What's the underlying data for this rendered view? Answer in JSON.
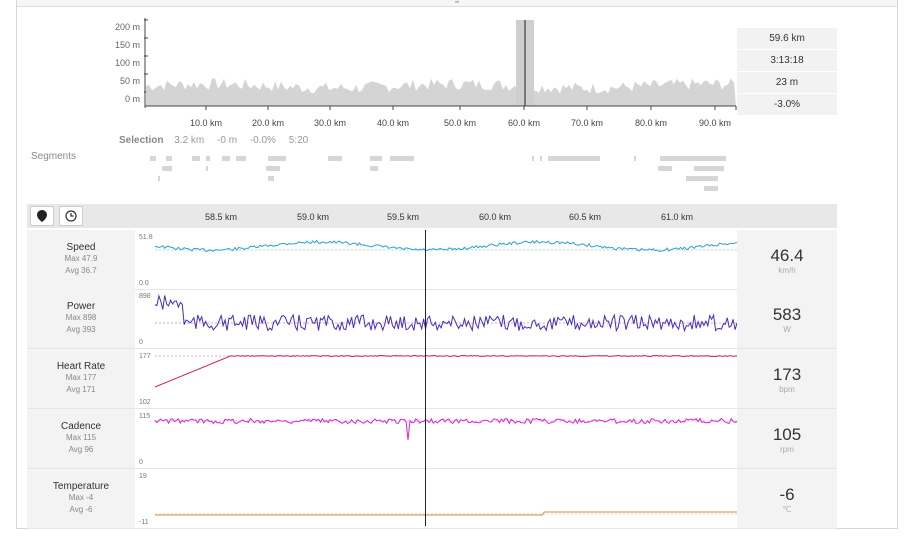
{
  "elevation": {
    "y_ticks": [
      "200 m",
      "150 m",
      "100 m",
      "50 m",
      "0 m"
    ],
    "x_ticks": [
      "10.0 km",
      "20.0 km",
      "30.0 km",
      "40.0 km",
      "50.0 km",
      "60.0 km",
      "70.0 km",
      "80.0 km",
      "90.0 km"
    ]
  },
  "stats": [
    "59.6 km",
    "3:13:18",
    "23 m",
    "-3.0%"
  ],
  "selection": {
    "label": "Selection",
    "distance": "3.2 km",
    "elevation": "-0 m",
    "grade": "-0.0%",
    "time": "5:20"
  },
  "segments_label": "Segments",
  "tracks_axis": [
    "58.5 km",
    "59.0 km",
    "59.5 km",
    "60.0 km",
    "60.5 km",
    "61.0 km"
  ],
  "tracks": [
    {
      "name": "Speed",
      "max": "Max 47.9",
      "avg": "Avg 36.7",
      "top": "51.8",
      "bottom": "0.0",
      "value": "46.4",
      "unit": "km/h",
      "color": "#2a9fd6"
    },
    {
      "name": "Power",
      "max": "Max 898",
      "avg": "Avg 393",
      "top": "898",
      "bottom": "0",
      "value": "583",
      "unit": "W",
      "color": "#4b2bbf"
    },
    {
      "name": "Heart Rate",
      "max": "Max 177",
      "avg": "Avg 171",
      "top": "177",
      "bottom": "102",
      "value": "173",
      "unit": "bpm",
      "color": "#d0204f"
    },
    {
      "name": "Cadence",
      "max": "Max 115",
      "avg": "Avg 96",
      "top": "115",
      "bottom": "0",
      "value": "105",
      "unit": "rpm",
      "color": "#d624d6"
    },
    {
      "name": "Temperature",
      "max": "Max -4",
      "avg": "Avg -6",
      "top": "19",
      "bottom": "-11",
      "value": "-6",
      "unit": "℃",
      "color": "#c9903f"
    }
  ]
}
